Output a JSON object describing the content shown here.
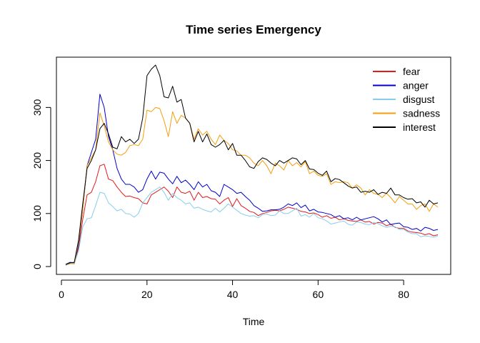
{
  "chart_data": {
    "type": "line",
    "title": "Time series Emergency",
    "xlabel": "Time",
    "ylabel": "",
    "xlim": [
      1,
      88
    ],
    "ylim": [
      0,
      380
    ],
    "x_ticks": [
      0,
      20,
      40,
      60,
      80
    ],
    "y_ticks": [
      0,
      100,
      200,
      300
    ],
    "grid": false,
    "legend": "top-right",
    "x": [
      1,
      2,
      3,
      4,
      5,
      6,
      7,
      8,
      9,
      10,
      11,
      12,
      13,
      14,
      15,
      16,
      17,
      18,
      19,
      20,
      21,
      22,
      23,
      24,
      25,
      26,
      27,
      28,
      29,
      30,
      31,
      32,
      33,
      34,
      35,
      36,
      37,
      38,
      39,
      40,
      41,
      42,
      43,
      44,
      45,
      46,
      47,
      48,
      49,
      50,
      51,
      52,
      53,
      54,
      55,
      56,
      57,
      58,
      59,
      60,
      61,
      62,
      63,
      64,
      65,
      66,
      67,
      68,
      69,
      70,
      71,
      72,
      73,
      74,
      75,
      76,
      77,
      78,
      79,
      80,
      81,
      82,
      83,
      84,
      85,
      86,
      87,
      88
    ],
    "series": [
      {
        "name": "fear",
        "color": "#E31A1C",
        "values": [
          3,
          6,
          5,
          35,
          90,
          135,
          140,
          160,
          190,
          193,
          165,
          162,
          150,
          140,
          132,
          133,
          130,
          128,
          120,
          118,
          135,
          140,
          145,
          150,
          142,
          130,
          150,
          140,
          138,
          142,
          125,
          140,
          130,
          132,
          128,
          127,
          118,
          125,
          130,
          113,
          128,
          115,
          110,
          104,
          102,
          96,
          100,
          102,
          105,
          106,
          105,
          108,
          112,
          110,
          108,
          104,
          103,
          100,
          101,
          98,
          93,
          96,
          91,
          93,
          88,
          90,
          87,
          86,
          85,
          88,
          84,
          85,
          80,
          83,
          82,
          77,
          80,
          74,
          72,
          72,
          67,
          65,
          64,
          63,
          60,
          62,
          58,
          60
        ]
      },
      {
        "name": "anger",
        "color": "#0000CC",
        "values": [
          4,
          8,
          7,
          40,
          110,
          190,
          215,
          240,
          325,
          300,
          245,
          220,
          185,
          165,
          155,
          155,
          150,
          140,
          145,
          165,
          180,
          165,
          178,
          176,
          165,
          156,
          170,
          158,
          163,
          155,
          145,
          160,
          150,
          155,
          143,
          140,
          132,
          155,
          150,
          145,
          138,
          140,
          132,
          125,
          115,
          110,
          104,
          105,
          107,
          107,
          108,
          112,
          118,
          115,
          120,
          111,
          116,
          105,
          108,
          103,
          102,
          100,
          98,
          93,
          96,
          90,
          92,
          88,
          93,
          88,
          90,
          92,
          94,
          90,
          84,
          88,
          79,
          81,
          82,
          75,
          74,
          70,
          72,
          67,
          74,
          72,
          68,
          70
        ]
      },
      {
        "name": "disgust",
        "color": "#87CEEB",
        "values": [
          2,
          5,
          5,
          30,
          75,
          90,
          92,
          115,
          140,
          138,
          120,
          113,
          105,
          108,
          100,
          99,
          93,
          100,
          120,
          130,
          140,
          145,
          150,
          140,
          125,
          138,
          130,
          125,
          118,
          120,
          110,
          112,
          108,
          105,
          103,
          110,
          103,
          110,
          118,
          112,
          106,
          100,
          97,
          95,
          96,
          92,
          98,
          99,
          96,
          97,
          105,
          100,
          100,
          105,
          110,
          95,
          98,
          93,
          100,
          92,
          90,
          86,
          80,
          82,
          84,
          86,
          80,
          78,
          84,
          83,
          80,
          79,
          83,
          81,
          77,
          74,
          76,
          75,
          70,
          70,
          65,
          62,
          62,
          56,
          58,
          57,
          55,
          58
        ]
      },
      {
        "name": "sadness",
        "color": "#F59E0B",
        "values": [
          3,
          6,
          6,
          45,
          110,
          190,
          205,
          220,
          290,
          265,
          235,
          220,
          212,
          210,
          215,
          228,
          230,
          228,
          240,
          295,
          292,
          300,
          298,
          275,
          245,
          292,
          270,
          285,
          280,
          270,
          240,
          260,
          248,
          255,
          240,
          230,
          248,
          238,
          232,
          220,
          218,
          210,
          210,
          205,
          195,
          190,
          200,
          190,
          175,
          195,
          190,
          182,
          200,
          190,
          196,
          188,
          198,
          175,
          180,
          172,
          170,
          175,
          155,
          160,
          158,
          160,
          158,
          148,
          154,
          148,
          135,
          145,
          138,
          136,
          130,
          138,
          130,
          120,
          132,
          125,
          118,
          118,
          108,
          115,
          118,
          104,
          118,
          112
        ]
      },
      {
        "name": "interest",
        "color": "#000000",
        "values": [
          4,
          7,
          8,
          50,
          120,
          185,
          200,
          220,
          260,
          270,
          250,
          225,
          222,
          245,
          235,
          240,
          232,
          240,
          280,
          360,
          372,
          380,
          360,
          320,
          318,
          340,
          310,
          315,
          280,
          270,
          235,
          255,
          235,
          250,
          230,
          225,
          230,
          238,
          220,
          232,
          210,
          210,
          200,
          188,
          185,
          198,
          205,
          202,
          195,
          190,
          200,
          195,
          200,
          205,
          203,
          192,
          200,
          184,
          183,
          176,
          172,
          180,
          160,
          166,
          164,
          158,
          152,
          148,
          150,
          140,
          142,
          140,
          145,
          136,
          140,
          138,
          148,
          135,
          135,
          130,
          127,
          128,
          120,
          122,
          112,
          125,
          118,
          120
        ]
      }
    ]
  }
}
